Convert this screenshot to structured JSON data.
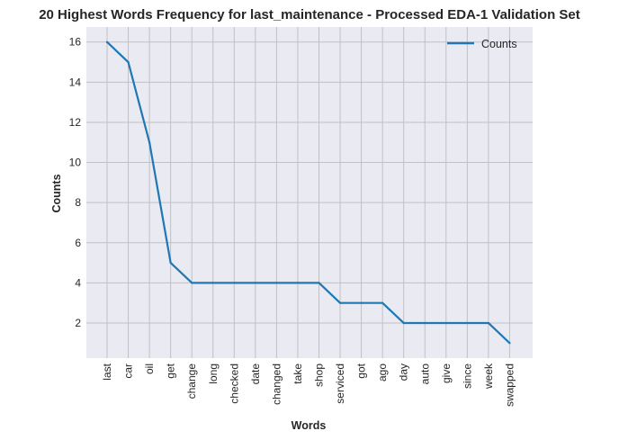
{
  "chart_data": {
    "type": "line",
    "title": "20 Highest Words Frequency for last_maintenance - Processed EDA-1 Validation Set",
    "xlabel": "Words",
    "ylabel": "Counts",
    "categories": [
      "last",
      "car",
      "oil",
      "get",
      "change",
      "long",
      "checked",
      "date",
      "changed",
      "take",
      "shop",
      "serviced",
      "got",
      "ago",
      "day",
      "auto",
      "give",
      "since",
      "week",
      "swapped"
    ],
    "series": [
      {
        "name": "Counts",
        "values": [
          16,
          15,
          11,
          5,
          4,
          4,
          4,
          4,
          4,
          4,
          4,
          3,
          3,
          3,
          2,
          2,
          2,
          2,
          2,
          1
        ]
      }
    ],
    "yticks": [
      2,
      4,
      6,
      8,
      10,
      12,
      14,
      16
    ],
    "ylim": [
      0.25,
      16.75
    ],
    "grid": true,
    "legend_position": "top-right",
    "colors": {
      "line": "#1f77b4",
      "background": "#eaeaf2",
      "grid": "#c0c0c4"
    }
  }
}
